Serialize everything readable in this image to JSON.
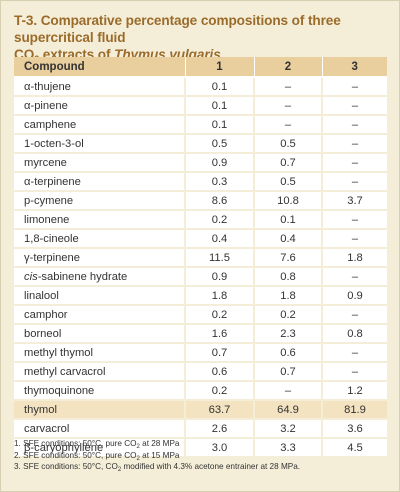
{
  "title": {
    "line1": "T-3. Comparative percentage compositions of three supercritical fluid",
    "co": "CO",
    "sub2": "2",
    "middle": " extracts of ",
    "species": "Thymus vulgaris"
  },
  "table": {
    "headers": [
      "Compound",
      "1",
      "2",
      "3"
    ],
    "rows": [
      {
        "compound": "α-thujene",
        "v1": "0.1",
        "v2": "–",
        "v3": "–"
      },
      {
        "compound": "α-pinene",
        "v1": "0.1",
        "v2": "–",
        "v3": "–"
      },
      {
        "compound": "camphene",
        "v1": "0.1",
        "v2": "–",
        "v3": "–"
      },
      {
        "compound": "1-octen-3-ol",
        "v1": "0.5",
        "v2": "0.5",
        "v3": "–"
      },
      {
        "compound": "myrcene",
        "v1": "0.9",
        "v2": "0.7",
        "v3": "–"
      },
      {
        "compound": "α-terpinene",
        "v1": "0.3",
        "v2": "0.5",
        "v3": "–"
      },
      {
        "compound": "p-cymene",
        "v1": "8.6",
        "v2": "10.8",
        "v3": "3.7"
      },
      {
        "compound": "limonene",
        "v1": "0.2",
        "v2": "0.1",
        "v3": "–"
      },
      {
        "compound": "1,8-cineole",
        "v1": "0.4",
        "v2": "0.4",
        "v3": "–"
      },
      {
        "compound": "γ-terpinene",
        "v1": "11.5",
        "v2": "7.6",
        "v3": "1.8"
      },
      {
        "compound_italic": "cis",
        "compound_rest": "-sabinene hydrate",
        "v1": "0.9",
        "v2": "0.8",
        "v3": "–"
      },
      {
        "compound": "linalool",
        "v1": "1.8",
        "v2": "1.8",
        "v3": "0.9"
      },
      {
        "compound": "camphor",
        "v1": "0.2",
        "v2": "0.2",
        "v3": "–"
      },
      {
        "compound": "borneol",
        "v1": "1.6",
        "v2": "2.3",
        "v3": "0.8"
      },
      {
        "compound": "methyl thymol",
        "v1": "0.7",
        "v2": "0.6",
        "v3": "–"
      },
      {
        "compound": "methyl carvacrol",
        "v1": "0.6",
        "v2": "0.7",
        "v3": "–"
      },
      {
        "compound": "thymoquinone",
        "v1": "0.2",
        "v2": "–",
        "v3": "1.2"
      },
      {
        "compound": "thymol",
        "v1": "63.7",
        "v2": "64.9",
        "v3": "81.9"
      },
      {
        "compound": "carvacrol",
        "v1": "2.6",
        "v2": "3.2",
        "v3": "3.6"
      },
      {
        "compound": "β-caryophyllene",
        "v1": "3.0",
        "v2": "3.3",
        "v3": "4.5"
      }
    ]
  },
  "notes": [
    {
      "before": "1. SFE conditions: 50°C, pure CO",
      "sub": "2",
      "after": " at 28 MPa"
    },
    {
      "before": "2. SFE conditions: 50°C, pure CO",
      "sub": "2",
      "after": " at 15 MPa"
    },
    {
      "before": "3. SFE conditions: 50°C, CO",
      "sub": "2",
      "after": " modified with 4.3% acetone entrainer at 28 MPa."
    }
  ],
  "colors": {
    "title": "#9b6b2a",
    "panel_background": "#f4eed9",
    "header_background": "#e9cf9d",
    "highlight_row": "#f3e3c1"
  }
}
